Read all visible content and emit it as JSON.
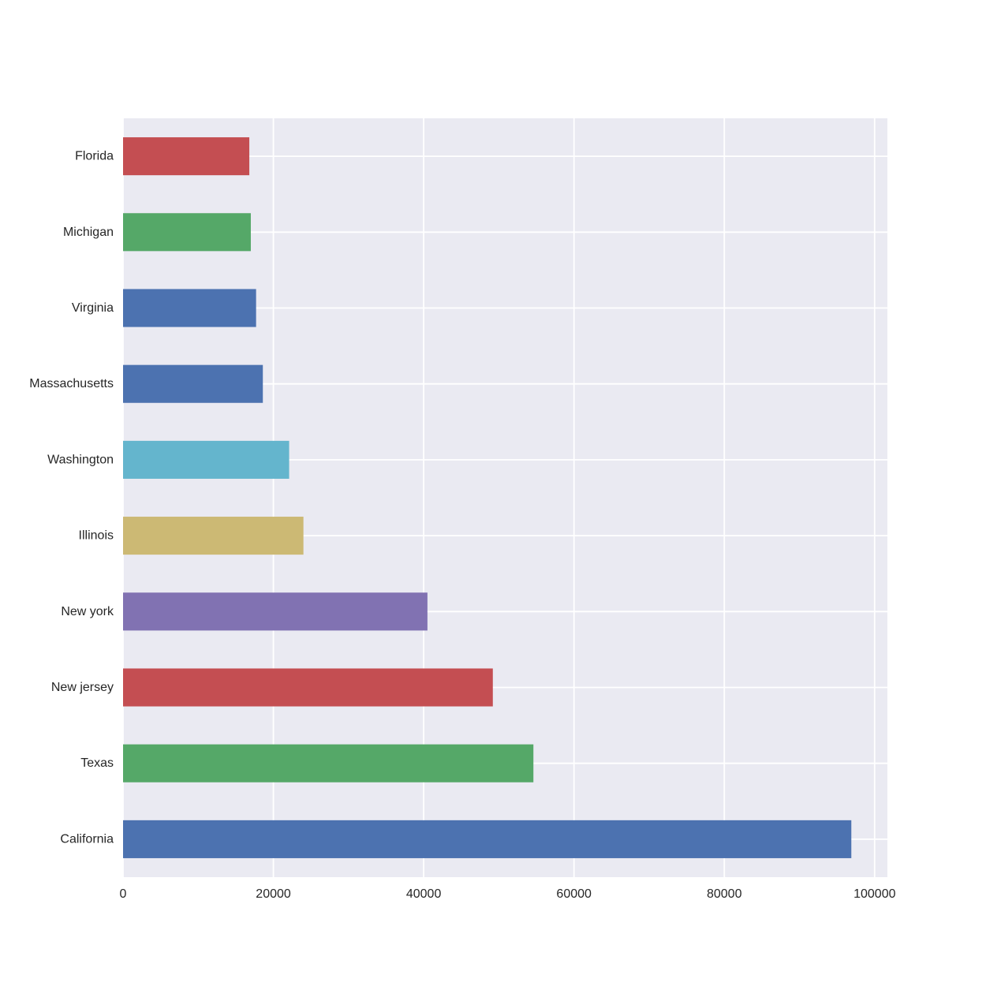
{
  "chart_data": {
    "type": "bar",
    "orientation": "horizontal",
    "title": "",
    "xlabel": "",
    "ylabel": "",
    "categories": [
      "California",
      "Texas",
      "New jersey",
      "New york",
      "Illinois",
      "Washington",
      "Massachusetts",
      "Virginia",
      "Michigan",
      "Florida"
    ],
    "values": [
      96900,
      54600,
      49200,
      40500,
      24000,
      22100,
      18600,
      17700,
      17000,
      16800
    ],
    "bar_colors": [
      "#4c72b0",
      "#55a868",
      "#c44e52",
      "#8172b2",
      "#ccb974",
      "#64b5cd",
      "#4c72b0",
      "#4c72b0",
      "#55a868",
      "#c44e52"
    ],
    "xlim": [
      0,
      101700
    ],
    "xticks": [
      0,
      20000,
      40000,
      60000,
      80000,
      100000
    ],
    "xtick_labels": [
      "0",
      "20000",
      "40000",
      "60000",
      "80000",
      "100000"
    ],
    "grid": true,
    "legend": "none",
    "style": {
      "axes_background": "#eaeaf2",
      "grid_color": "#ffffff",
      "text_color": "#262626",
      "figure_background": "#ffffff"
    }
  }
}
